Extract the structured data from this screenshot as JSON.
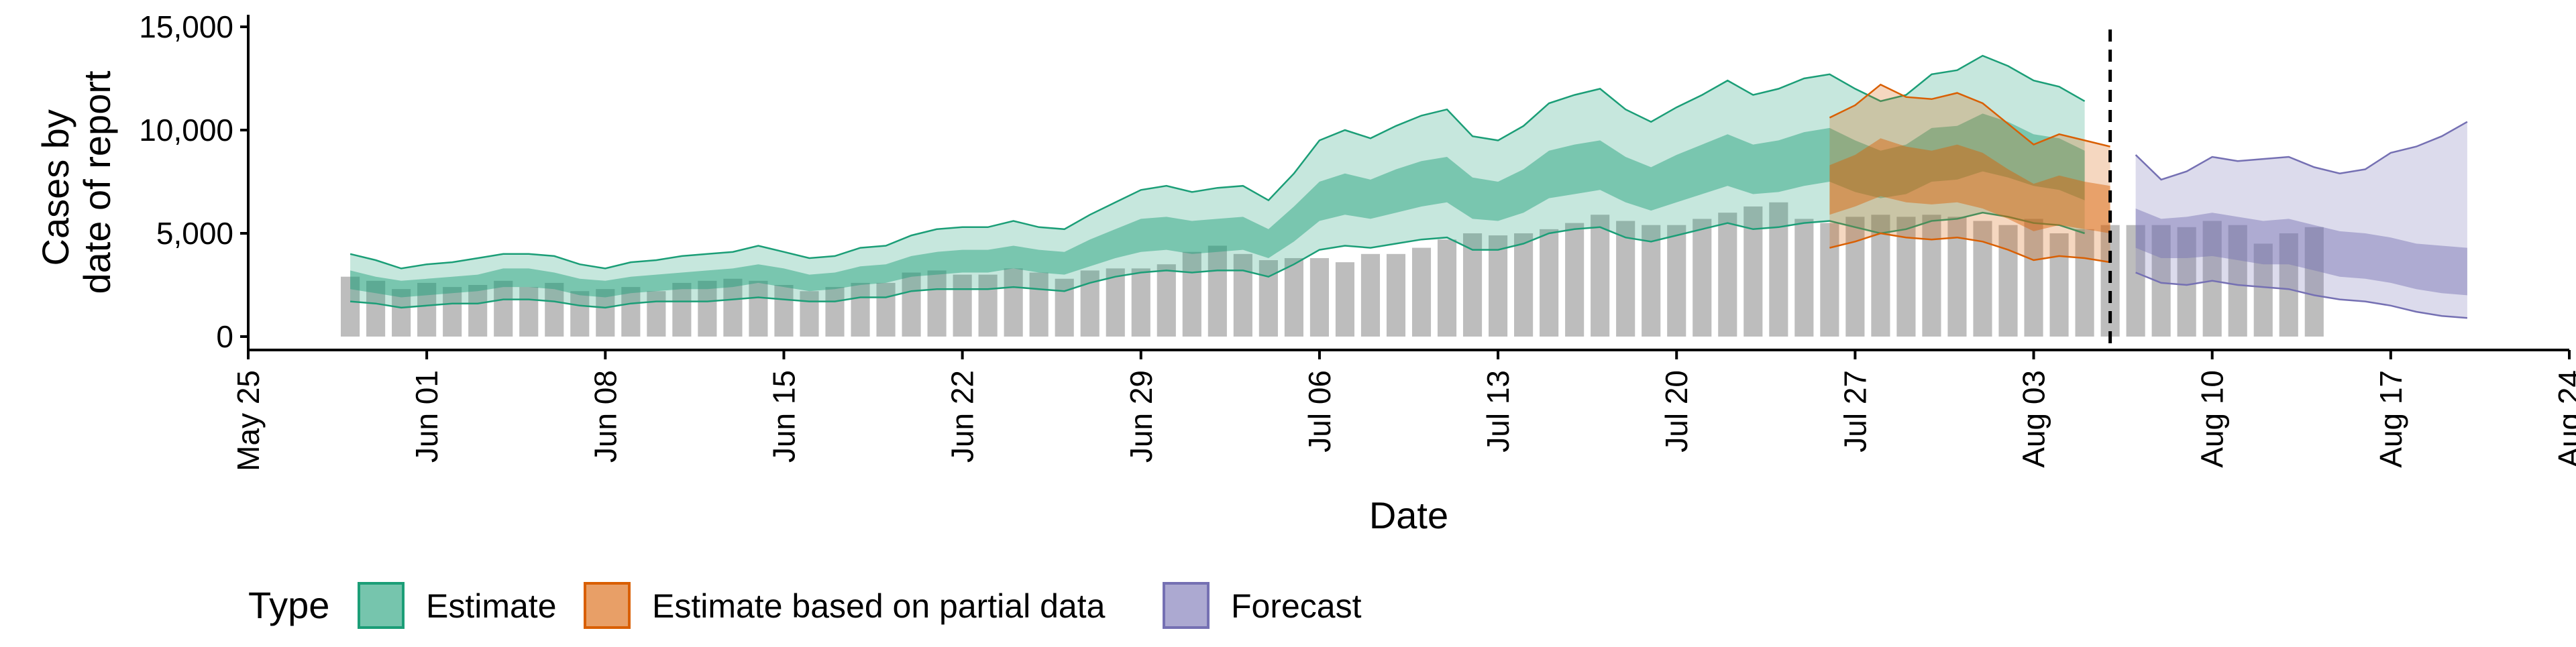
{
  "chart_data": {
    "type": "bar",
    "xlabel": "Date",
    "ylabel": [
      "Cases by",
      "date of report"
    ],
    "ylim": [
      0,
      15000
    ],
    "yticks": [
      0,
      5000,
      10000,
      15000
    ],
    "ytick_labels": [
      "0",
      "5,000",
      "10,000",
      "15,000"
    ],
    "xlim": [
      "2021-05-25",
      "2021-08-24"
    ],
    "xticks": [
      "2021-05-25",
      "2021-06-01",
      "2021-06-08",
      "2021-06-15",
      "2021-06-22",
      "2021-06-29",
      "2021-07-06",
      "2021-07-13",
      "2021-07-20",
      "2021-07-27",
      "2021-08-03",
      "2021-08-10",
      "2021-08-17",
      "2021-08-24"
    ],
    "xtick_labels": [
      "May 25",
      "Jun 01",
      "Jun 08",
      "Jun 15",
      "Jun 22",
      "Jun 29",
      "Jul 06",
      "Jul 13",
      "Jul 20",
      "Jul 27",
      "Aug 03",
      "Aug 10",
      "Aug 17",
      "Aug 24"
    ],
    "vline_date": "2021-08-06",
    "bar_color": "#bdbdbd",
    "bars": {
      "start": "2021-05-29",
      "values": [
        2900,
        2700,
        2300,
        2600,
        2400,
        2500,
        2700,
        2400,
        2600,
        2200,
        2300,
        2400,
        2200,
        2600,
        2700,
        2800,
        2700,
        2500,
        2200,
        2400,
        2600,
        2600,
        3100,
        3200,
        3000,
        3000,
        3300,
        3100,
        2800,
        3200,
        3300,
        3300,
        3500,
        4100,
        4400,
        4000,
        3700,
        3800,
        3800,
        3600,
        4000,
        4000,
        4300,
        4700,
        5000,
        4900,
        5000,
        5200,
        5500,
        5900,
        5600,
        5400,
        5400,
        5700,
        6000,
        6300,
        6500,
        5700,
        5500,
        5800,
        5900,
        5800,
        5900,
        5800,
        5600,
        5400,
        5700,
        5000,
        5200,
        5400,
        5400,
        5400,
        5300,
        5600,
        5400,
        4500,
        5000,
        5300
      ]
    },
    "series": [
      {
        "name": "Estimate",
        "color": "#1b9e77",
        "start": "2021-05-29",
        "median": [
          2700,
          2500,
          2300,
          2400,
          2500,
          2600,
          2800,
          2800,
          2700,
          2400,
          2300,
          2500,
          2600,
          2700,
          2700,
          2800,
          3000,
          2800,
          2600,
          2700,
          2900,
          3000,
          3400,
          3500,
          3600,
          3600,
          3800,
          3600,
          3500,
          4000,
          4500,
          4900,
          5000,
          4800,
          4900,
          5000,
          4500,
          5400,
          6500,
          6800,
          6600,
          7000,
          7300,
          7500,
          6600,
          6500,
          7000,
          7800,
          8000,
          8200,
          7500,
          7100,
          7600,
          8000,
          8500,
          8000,
          8200,
          8500,
          8700,
          8200,
          7800,
          8000,
          8700,
          8800,
          9300,
          9000,
          8500,
          8300,
          7800
        ],
        "lo50": [
          2300,
          2100,
          1900,
          2000,
          2100,
          2200,
          2400,
          2400,
          2300,
          2000,
          1900,
          2100,
          2200,
          2300,
          2300,
          2400,
          2600,
          2400,
          2200,
          2300,
          2500,
          2600,
          2900,
          3000,
          3100,
          3100,
          3300,
          3100,
          3000,
          3400,
          3800,
          4100,
          4200,
          4000,
          4100,
          4200,
          3800,
          4600,
          5600,
          5900,
          5700,
          6000,
          6300,
          6500,
          5700,
          5600,
          6000,
          6700,
          6900,
          7100,
          6500,
          6100,
          6500,
          6900,
          7300,
          6900,
          7000,
          7300,
          7500,
          7000,
          6700,
          6900,
          7500,
          7600,
          8000,
          7700,
          7300,
          7100,
          6600
        ],
        "hi50": [
          3200,
          2900,
          2700,
          2800,
          2900,
          3000,
          3300,
          3300,
          3100,
          2800,
          2700,
          2900,
          3000,
          3100,
          3200,
          3300,
          3500,
          3300,
          3000,
          3100,
          3400,
          3500,
          3900,
          4100,
          4200,
          4200,
          4400,
          4200,
          4100,
          4700,
          5200,
          5700,
          5800,
          5600,
          5700,
          5800,
          5200,
          6300,
          7500,
          7900,
          7600,
          8100,
          8500,
          8700,
          7700,
          7500,
          8100,
          9000,
          9300,
          9500,
          8700,
          8200,
          8800,
          9300,
          9800,
          9300,
          9500,
          9900,
          10100,
          9500,
          9000,
          9300,
          10100,
          10200,
          10800,
          10400,
          9800,
          9600,
          9000
        ],
        "lo90": [
          1700,
          1600,
          1400,
          1500,
          1600,
          1600,
          1800,
          1800,
          1700,
          1500,
          1400,
          1600,
          1700,
          1700,
          1700,
          1800,
          1900,
          1800,
          1700,
          1700,
          1900,
          1900,
          2200,
          2300,
          2300,
          2300,
          2400,
          2300,
          2200,
          2600,
          2900,
          3100,
          3200,
          3100,
          3200,
          3200,
          2900,
          3500,
          4200,
          4400,
          4300,
          4500,
          4700,
          4800,
          4200,
          4200,
          4500,
          5000,
          5200,
          5300,
          4800,
          4600,
          4900,
          5200,
          5500,
          5200,
          5300,
          5500,
          5600,
          5300,
          5000,
          5200,
          5600,
          5700,
          6000,
          5800,
          5500,
          5400,
          5000
        ],
        "hi90": [
          4000,
          3700,
          3300,
          3500,
          3600,
          3800,
          4000,
          4000,
          3900,
          3500,
          3300,
          3600,
          3700,
          3900,
          4000,
          4100,
          4400,
          4100,
          3800,
          3900,
          4300,
          4400,
          4900,
          5200,
          5300,
          5300,
          5600,
          5300,
          5200,
          5900,
          6500,
          7100,
          7300,
          7000,
          7200,
          7300,
          6600,
          7900,
          9500,
          10000,
          9600,
          10200,
          10700,
          11000,
          9700,
          9500,
          10200,
          11300,
          11700,
          12000,
          11000,
          10400,
          11100,
          11700,
          12400,
          11700,
          12000,
          12500,
          12700,
          12000,
          11400,
          11700,
          12700,
          12900,
          13600,
          13100,
          12400,
          12100,
          11400
        ]
      },
      {
        "name": "Estimate based on partial data",
        "color": "#d95f02",
        "start": "2021-07-26",
        "median": [
          7000,
          7400,
          8000,
          7700,
          7500,
          7700,
          7400,
          6800,
          6200,
          6500,
          6200,
          6000
        ],
        "lo50": [
          5900,
          6300,
          6800,
          6500,
          6400,
          6500,
          6200,
          5700,
          5100,
          5400,
          5200,
          5000
        ],
        "hi50": [
          8300,
          8800,
          9600,
          9200,
          9000,
          9300,
          8900,
          8100,
          7400,
          7800,
          7500,
          7300
        ],
        "lo90": [
          4300,
          4600,
          5000,
          4800,
          4700,
          4800,
          4600,
          4200,
          3700,
          3900,
          3800,
          3600
        ],
        "hi90": [
          10600,
          11200,
          12200,
          11600,
          11500,
          11800,
          11300,
          10300,
          9300,
          9800,
          9500,
          9200
        ]
      },
      {
        "name": "Forecast",
        "color": "#7570b3",
        "start": "2021-08-07",
        "median": [
          5000,
          4600,
          4700,
          4900,
          4700,
          4500,
          4600,
          4300,
          4000,
          3900,
          3700,
          3400,
          3300,
          3200
        ],
        "lo50": [
          4300,
          3800,
          3800,
          3900,
          3700,
          3500,
          3500,
          3200,
          2900,
          2800,
          2600,
          2300,
          2100,
          2000
        ],
        "hi50": [
          6200,
          5700,
          5800,
          6000,
          5800,
          5600,
          5700,
          5400,
          5100,
          5000,
          4800,
          4500,
          4400,
          4300
        ],
        "lo90": [
          3100,
          2600,
          2500,
          2700,
          2500,
          2400,
          2300,
          2000,
          1800,
          1700,
          1500,
          1200,
          1000,
          900
        ],
        "hi90": [
          8800,
          7600,
          8000,
          8700,
          8500,
          8600,
          8700,
          8200,
          7900,
          8100,
          8900,
          9200,
          9700,
          10400
        ]
      }
    ],
    "legend": {
      "title": "Type",
      "position": "bottom",
      "entries": [
        "Estimate",
        "Estimate based on partial data",
        "Forecast"
      ]
    }
  }
}
